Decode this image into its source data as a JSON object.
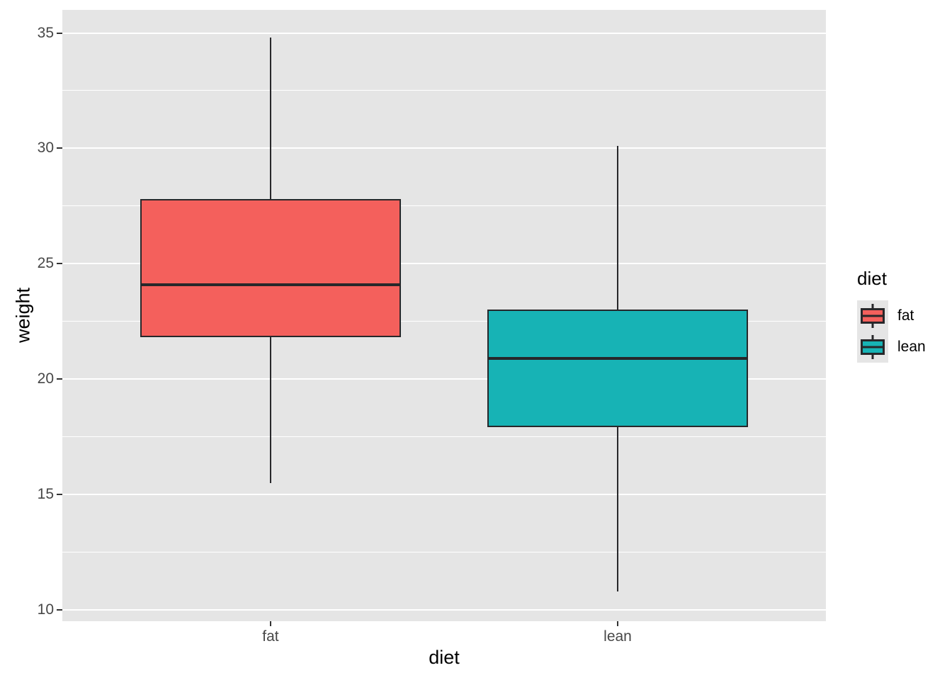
{
  "figure": {
    "background": "#FFFFFF",
    "panel_background": "#E5E5E5",
    "grid_color": "#FFFFFF",
    "tick_text_color": "#474747",
    "title_text_color": "#000000",
    "box_outline_color": "#27272A"
  },
  "chart_data": {
    "type": "boxplot",
    "title": "",
    "xlabel": "diet",
    "ylabel": "weight",
    "categories": [
      "fat",
      "lean"
    ],
    "y_ticks": [
      10,
      15,
      20,
      25,
      30,
      35
    ],
    "y_minor_ticks": [
      12.5,
      17.5,
      22.5,
      27.5,
      32.5
    ],
    "ylim": [
      9.5,
      36.0
    ],
    "grid": true,
    "box_width_frac": 0.341,
    "series": [
      {
        "name": "fat",
        "fill": "#F4605C",
        "x_frac": 0.2727,
        "whisker_low": 15.5,
        "q1": 21.8,
        "median": 24.1,
        "q3": 27.8,
        "whisker_high": 34.8,
        "outliers": []
      },
      {
        "name": "lean",
        "fill": "#17B3B5",
        "x_frac": 0.7273,
        "whisker_low": 10.8,
        "q1": 17.9,
        "median": 20.9,
        "q3": 23.0,
        "whisker_high": 30.1,
        "outliers": []
      }
    ],
    "legend": {
      "title": "diet",
      "position": "right",
      "entries": [
        {
          "label": "fat",
          "color": "#F4605C"
        },
        {
          "label": "lean",
          "color": "#17B3B5"
        }
      ]
    }
  }
}
